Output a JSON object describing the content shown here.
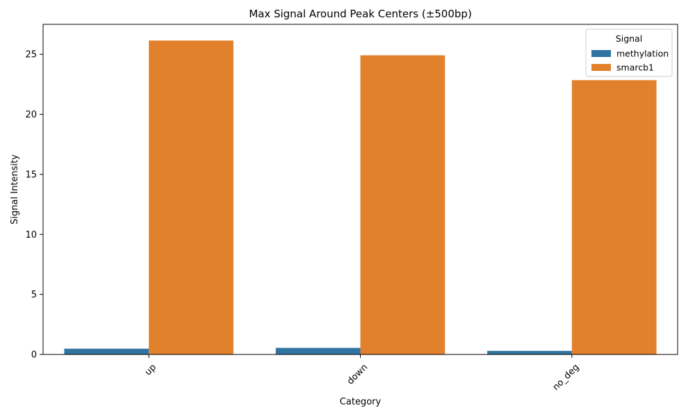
{
  "chart_data": {
    "type": "bar",
    "title": "Max Signal Around Peak Centers (±500bp)",
    "xlabel": "Category",
    "ylabel": "Signal Intensity",
    "categories": [
      "up",
      "down",
      "no_deg"
    ],
    "series": [
      {
        "name": "methylation",
        "color": "#3274a1",
        "values": [
          0.48,
          0.55,
          0.3
        ]
      },
      {
        "name": "smarcb1",
        "color": "#e1812c",
        "values": [
          26.15,
          24.92,
          22.85
        ]
      }
    ],
    "ylim": [
      0,
      27.5
    ],
    "yticks": [
      0,
      5,
      10,
      15,
      20,
      25
    ],
    "legend": {
      "title": "Signal",
      "position": "top-right"
    },
    "grid": false
  }
}
